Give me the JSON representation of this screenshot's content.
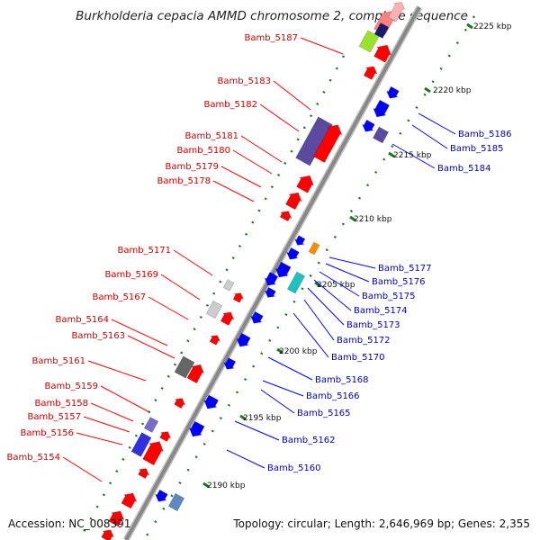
{
  "title": "Burkholderia cepacia AMMD chromosome 2, complete sequence",
  "accession": "Accession: NC_008391",
  "topology": "Topology: circular; Length: 2,646,969 bp; Genes: 2,355",
  "colors": {
    "forward_gene": "#ff0000",
    "reverse_gene": "#0000ff",
    "forward_label": "#cc0000",
    "reverse_label": "#0000bb",
    "tick": "#1a7a1a",
    "backbone": "#888888"
  },
  "kbp_ticks": [
    "2225 kbp",
    "2220 kbp",
    "2215 kbp",
    "2210 kbp",
    "2205 kbp",
    "2200 kbp",
    "2195 kbp",
    "2190 kbp"
  ],
  "forward_labels": [
    "Bamb_5187",
    "Bamb_5183",
    "Bamb_5182",
    "Bamb_5181",
    "Bamb_5180",
    "Bamb_5179",
    "Bamb_5178",
    "Bamb_5171",
    "Bamb_5169",
    "Bamb_5167",
    "Bamb_5164",
    "Bamb_5163",
    "Bamb_5161",
    "Bamb_5159",
    "Bamb_5158",
    "Bamb_5157",
    "Bamb_5156",
    "Bamb_5154"
  ],
  "reverse_labels": [
    "Bamb_5186",
    "Bamb_5185",
    "Bamb_5184",
    "Bamb_5177",
    "Bamb_5176",
    "Bamb_5175",
    "Bamb_5174",
    "Bamb_5173",
    "Bamb_5172",
    "Bamb_5170",
    "Bamb_5168",
    "Bamb_5166",
    "Bamb_5165",
    "Bamb_5162",
    "Bamb_5160"
  ]
}
